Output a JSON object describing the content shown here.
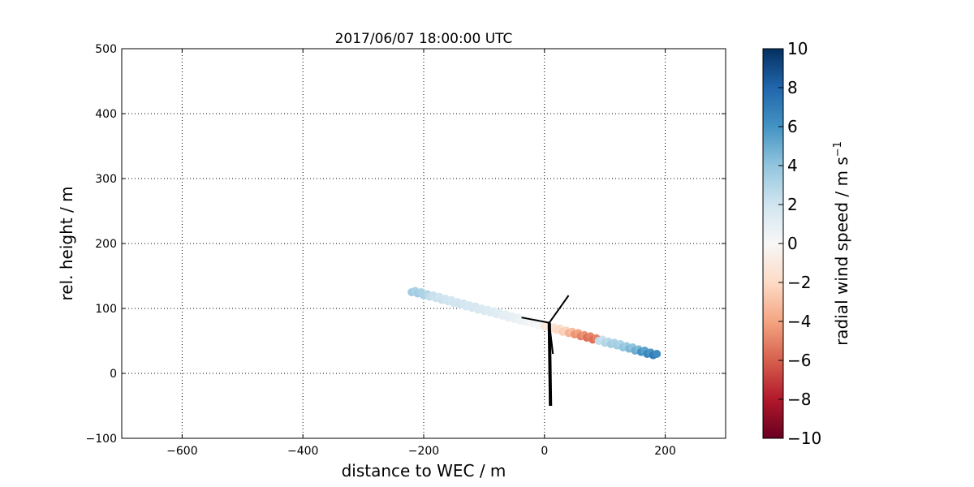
{
  "chart_data": {
    "type": "scatter",
    "title": "2017/06/07 18:00:00 UTC",
    "xlabel": "distance to WEC / m",
    "ylabel": "rel. height / m",
    "xlim": [
      -700,
      300
    ],
    "ylim": [
      -100,
      500
    ],
    "xticks": [
      -600,
      -400,
      -200,
      0,
      200
    ],
    "xtick_labels": [
      "−600",
      "−400",
      "−200",
      "0",
      "200"
    ],
    "yticks": [
      -100,
      0,
      100,
      200,
      300,
      400,
      500
    ],
    "ytick_labels": [
      "−100",
      "0",
      "100",
      "200",
      "300",
      "400",
      "500"
    ],
    "grid": true,
    "colorbar": {
      "label": "radial wind speed / m s",
      "label_superscript": "−1",
      "range": [
        -10,
        10
      ],
      "colormap": "RdBu",
      "ticks": [
        -10,
        -8,
        -6,
        -4,
        -2,
        0,
        2,
        4,
        6,
        8,
        10
      ],
      "tick_labels": [
        "−10",
        "−8",
        "−6",
        "−4",
        "−2",
        "0",
        "2",
        "4",
        "6",
        "8",
        "10"
      ]
    },
    "points": [
      [
        -220,
        125,
        3.5
      ],
      [
        -210,
        123,
        3.5
      ],
      [
        -200,
        120,
        3.2
      ],
      [
        -190,
        118,
        2.5
      ],
      [
        -180,
        116,
        2.2
      ],
      [
        -170,
        113,
        2.2
      ],
      [
        -160,
        111,
        2.0
      ],
      [
        -150,
        108,
        2.0
      ],
      [
        -140,
        106,
        2.0
      ],
      [
        -130,
        103,
        1.8
      ],
      [
        -120,
        101,
        1.8
      ],
      [
        -110,
        98,
        1.6
      ],
      [
        -100,
        96,
        1.5
      ],
      [
        -90,
        94,
        1.4
      ],
      [
        -80,
        91,
        1.2
      ],
      [
        -70,
        89,
        1.0
      ],
      [
        -60,
        86,
        1.0
      ],
      [
        -50,
        84,
        0.8
      ],
      [
        -40,
        81,
        0.6
      ],
      [
        -30,
        79,
        0.3
      ],
      [
        -20,
        77,
        0.2
      ],
      [
        -10,
        74,
        0.1
      ],
      [
        0,
        72,
        -1.0
      ],
      [
        10,
        69,
        -1.5
      ],
      [
        20,
        67,
        -2.0
      ],
      [
        30,
        64,
        -2.5
      ],
      [
        40,
        62,
        -3.5
      ],
      [
        50,
        60,
        -4.5
      ],
      [
        60,
        57,
        -5.0
      ],
      [
        70,
        55,
        -5.5
      ],
      [
        80,
        52,
        -5.5
      ],
      [
        90,
        50,
        2.5
      ],
      [
        100,
        47,
        3.0
      ],
      [
        110,
        45,
        3.5
      ],
      [
        120,
        43,
        3.5
      ],
      [
        130,
        40,
        4.0
      ],
      [
        140,
        38,
        4.5
      ],
      [
        150,
        35,
        5.0
      ],
      [
        160,
        33,
        6.0
      ],
      [
        170,
        30,
        6.5
      ],
      [
        180,
        28,
        7.0
      ]
    ],
    "turbine": {
      "tower": [
        [
          10,
          -50
        ],
        [
          8,
          78
        ]
      ],
      "blades": [
        [
          [
            8,
            78
          ],
          [
            40,
            120
          ]
        ],
        [
          [
            8,
            78
          ],
          [
            -38,
            86
          ]
        ],
        [
          [
            8,
            78
          ],
          [
            14,
            30
          ]
        ]
      ]
    }
  }
}
